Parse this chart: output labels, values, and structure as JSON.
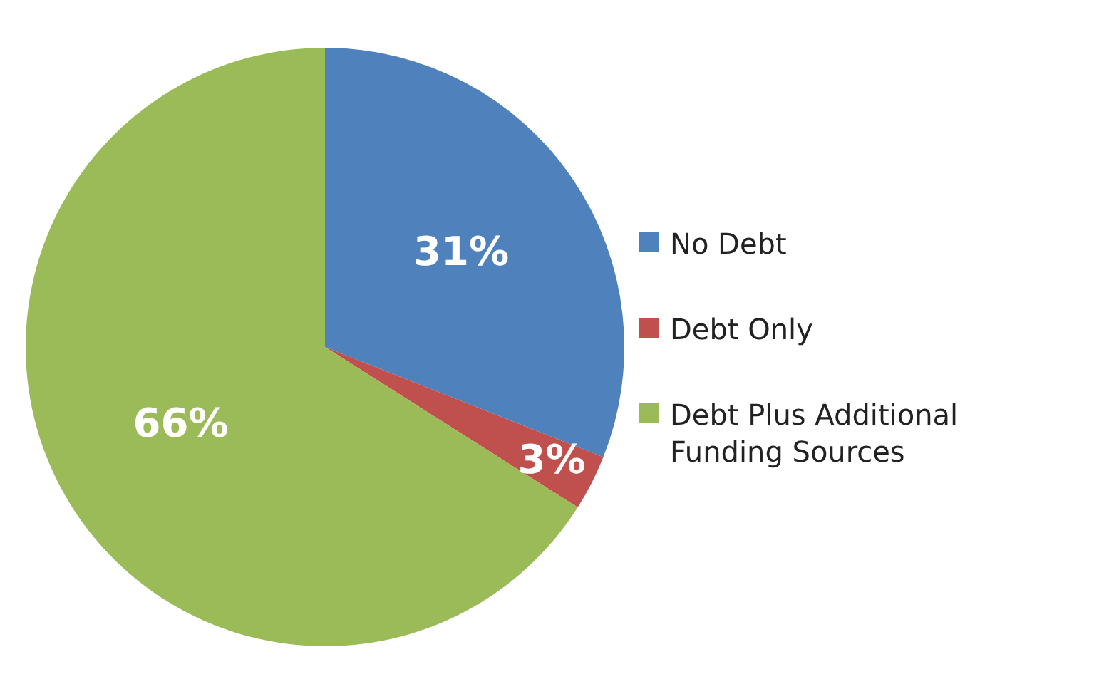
{
  "chart_data": {
    "type": "pie",
    "categories": [
      "No Debt",
      "Debt Only",
      "Debt Plus Additional Funding Sources"
    ],
    "values": [
      31,
      3,
      66
    ],
    "colors": [
      "#4f81bd",
      "#c0504d",
      "#9bbb59"
    ],
    "value_labels": [
      "31%",
      "3%",
      "66%"
    ],
    "legend": "right"
  }
}
